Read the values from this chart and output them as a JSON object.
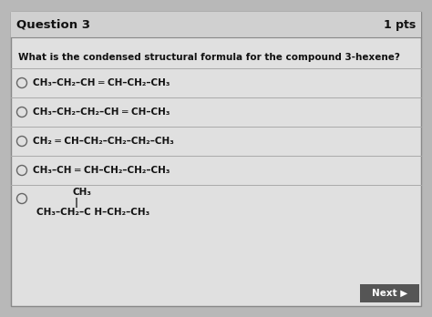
{
  "title": "Question 3",
  "pts": "1 pts",
  "question": "What is the condensed structural formula for the compound 3-hexene?",
  "opt1": "CH₃–CH₂–CH ═ CH–CH₂–CH₃",
  "opt2": "CH₃–CH₂–CH₂–CH ═ CH–CH₃",
  "opt3": "CH₂ ═ CH–CH₂–CH₂–CH₂–CH₃",
  "opt4": "CH₃–CH ═ CH–CH₂–CH₂–CH₃",
  "opt5_top": "CH₃",
  "opt5_bar": "|",
  "opt5_bot": "CH₃–CH₂–C H–CH₂–CH₃",
  "next_text": "Next ▶",
  "bg_color": "#c8c8c8",
  "outer_bg": "#b8b8b8",
  "header_bg": "#d0d0d0",
  "card_bg": "#e0e0e0",
  "text_color": "#111111",
  "divider_color": "#aaaaaa",
  "next_bg": "#555555",
  "next_fg": "#ffffff"
}
